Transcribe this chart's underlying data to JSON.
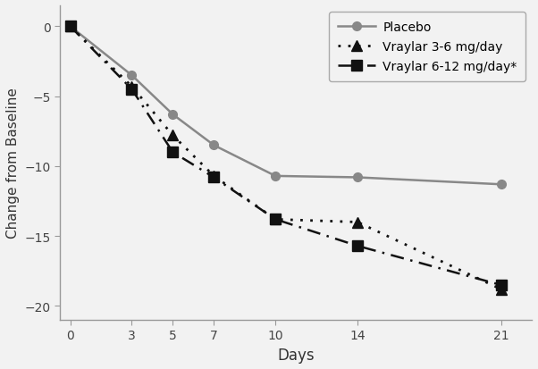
{
  "days": [
    0,
    3,
    5,
    7,
    10,
    14,
    21
  ],
  "placebo": [
    0,
    -3.5,
    -6.3,
    -8.5,
    -10.7,
    -10.8,
    -11.3
  ],
  "vraylar_low": [
    0,
    -4.3,
    -7.8,
    -10.7,
    -13.8,
    -14.0,
    -18.8
  ],
  "vraylar_high": [
    0,
    -4.5,
    -9.0,
    -10.8,
    -13.8,
    -15.7,
    -18.5
  ],
  "placebo_color": "#888888",
  "vraylar_color": "#111111",
  "xlabel": "Days",
  "ylabel": "Change from Baseline",
  "ylim": [
    -21,
    1.5
  ],
  "xlim": [
    -0.5,
    22.5
  ],
  "yticks": [
    0,
    -5,
    -10,
    -15,
    -20
  ],
  "xticks": [
    0,
    3,
    5,
    7,
    10,
    14,
    21
  ],
  "legend_placebo": "Placebo",
  "legend_low": "Vraylar 3-6 mg/day",
  "legend_high": "Vraylar 6-12 mg/day*",
  "background_color": "#f2f2f2",
  "spine_color": "#999999"
}
